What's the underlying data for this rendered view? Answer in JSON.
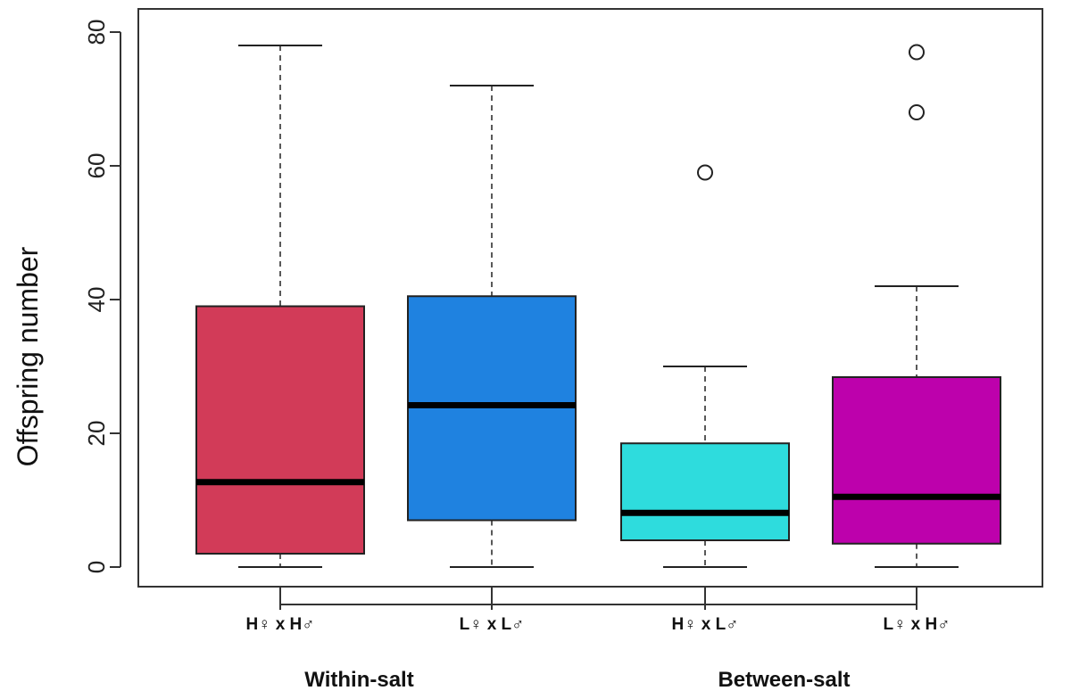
{
  "chart_data": {
    "type": "boxplot",
    "title": "",
    "xlabel": "",
    "ylabel": "Offspring number",
    "ylim": [
      0,
      80
    ],
    "yticks": [
      0,
      20,
      40,
      60,
      80
    ],
    "grid": false,
    "groups": [
      {
        "label": "Within-salt",
        "categories": [
          0,
          1
        ]
      },
      {
        "label": "Between-salt",
        "categories": [
          2,
          3
        ]
      }
    ],
    "boxes": [
      {
        "label": "H♀ x H♂",
        "color": "#d23b58",
        "whisker_low": 0,
        "q1": 2,
        "median": 12.7,
        "q3": 39,
        "whisker_high": 78,
        "outliers": []
      },
      {
        "label": "L♀ x L♂",
        "color": "#1f82e0",
        "whisker_low": 0,
        "q1": 7,
        "median": 24.2,
        "q3": 40.5,
        "whisker_high": 72,
        "outliers": []
      },
      {
        "label": "H♀ x L♂",
        "color": "#2edcdd",
        "whisker_low": 0,
        "q1": 4,
        "median": 8.1,
        "q3": 18.5,
        "whisker_high": 30,
        "outliers": [
          59
        ]
      },
      {
        "label": "L♀ x H♂",
        "color": "#bd01ac",
        "whisker_low": 0,
        "q1": 3.5,
        "median": 10.5,
        "q3": 28.4,
        "whisker_high": 42,
        "outliers": [
          68,
          77
        ]
      }
    ]
  }
}
